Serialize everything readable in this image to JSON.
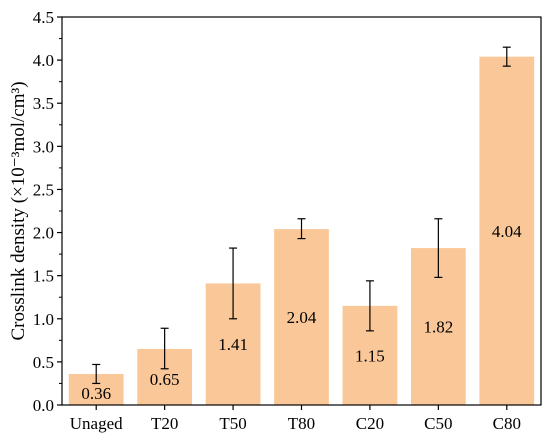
{
  "chart_data": {
    "type": "bar",
    "categories": [
      "Unaged",
      "T20",
      "T50",
      "T80",
      "C20",
      "C50",
      "C80"
    ],
    "values": [
      0.36,
      0.65,
      1.41,
      2.04,
      1.15,
      1.82,
      4.04
    ],
    "value_labels": [
      "0.36",
      "0.65",
      "1.41",
      "2.04",
      "1.15",
      "1.82",
      "4.04"
    ],
    "error_low": [
      0.25,
      0.42,
      1.0,
      1.93,
      0.86,
      1.48,
      3.93
    ],
    "error_high": [
      0.47,
      0.89,
      1.82,
      2.16,
      1.44,
      2.16,
      4.15
    ],
    "ylabel": "Crosslink density (×10⁻³mol/cm³)",
    "ylim": [
      0,
      4.5
    ],
    "yticks": [
      "0.0",
      "0.5",
      "1.0",
      "1.5",
      "2.0",
      "2.5",
      "3.0",
      "3.5",
      "4.0",
      "4.5"
    ],
    "bar_color": "#FAC898",
    "legend": "none",
    "grid": false
  }
}
